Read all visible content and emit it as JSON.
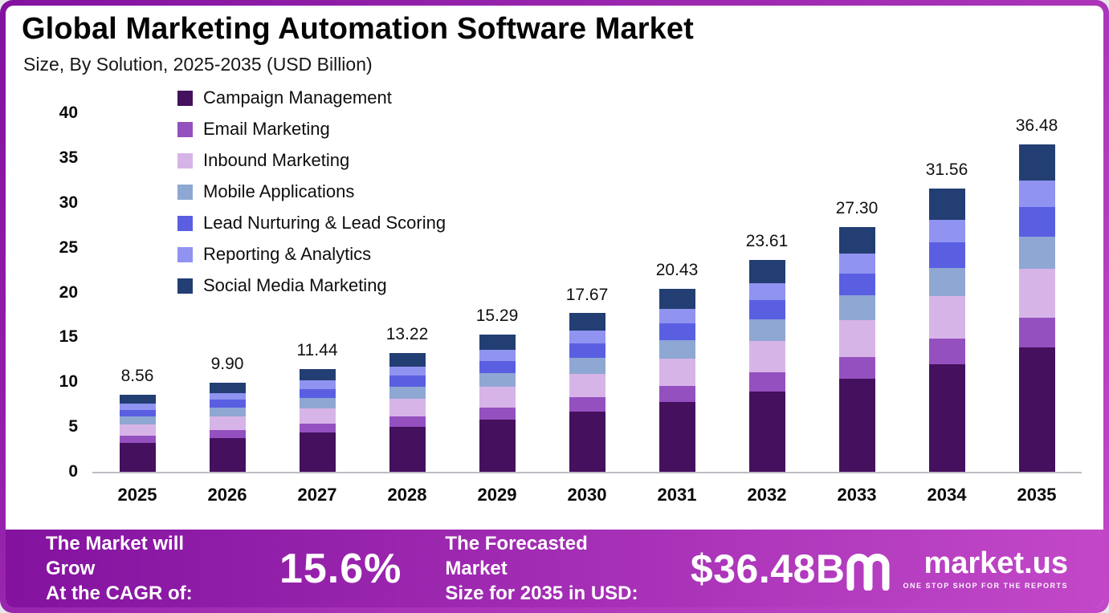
{
  "header": {
    "title": "Global Marketing Automation Software Market",
    "subtitle": "Size, By Solution, 2025-2035 (USD Billion)"
  },
  "theme": {
    "gradient": [
      "#83129f",
      "#c248c8"
    ],
    "background": "#ffffff",
    "text": "#0a0a0a",
    "axis_line": "#bcbcc4"
  },
  "chart_data": {
    "type": "bar",
    "stacked": true,
    "title": "Global Marketing Automation Software Market",
    "subtitle": "Size, By Solution, 2025-2035 (USD Billion)",
    "unit": "USD Billion",
    "xlabel": "",
    "ylabel": "",
    "ylim": [
      0,
      40
    ],
    "yticks": [
      0,
      5,
      10,
      15,
      20,
      25,
      30,
      35,
      40
    ],
    "grid": false,
    "legend_position": "upper-left-inside",
    "categories": [
      "2025",
      "2026",
      "2027",
      "2028",
      "2029",
      "2030",
      "2031",
      "2032",
      "2033",
      "2034",
      "2035"
    ],
    "totals": [
      8.56,
      9.9,
      11.44,
      13.22,
      15.29,
      17.67,
      20.43,
      23.61,
      27.3,
      31.56,
      36.48
    ],
    "total_labels": [
      "8.56",
      "9.90",
      "11.44",
      "13.22",
      "15.29",
      "17.67",
      "20.43",
      "23.61",
      "27.30",
      "31.56",
      "36.48"
    ],
    "note": "Only stacked totals are labeled in the figure; per-segment values are estimated from bar proportions.",
    "series": [
      {
        "name": "Campaign Management",
        "color": "#45105e",
        "values": [
          3.25,
          3.76,
          4.35,
          5.02,
          5.81,
          6.71,
          7.76,
          8.97,
          10.37,
          11.99,
          13.86
        ]
      },
      {
        "name": "Email Marketing",
        "color": "#9450bf",
        "values": [
          0.77,
          0.89,
          1.03,
          1.19,
          1.38,
          1.59,
          1.84,
          2.12,
          2.46,
          2.84,
          3.28
        ]
      },
      {
        "name": "Inbound Marketing",
        "color": "#d7b4e8",
        "values": [
          1.28,
          1.49,
          1.72,
          1.98,
          2.29,
          2.65,
          3.06,
          3.54,
          4.1,
          4.73,
          5.47
        ]
      },
      {
        "name": "Mobile Applications",
        "color": "#8fa7d3",
        "values": [
          0.86,
          0.99,
          1.14,
          1.32,
          1.53,
          1.77,
          2.04,
          2.36,
          2.73,
          3.16,
          3.65
        ]
      },
      {
        "name": "Lead Nurturing & Lead Scoring",
        "color": "#5a5fe2",
        "values": [
          0.77,
          0.89,
          1.03,
          1.19,
          1.38,
          1.59,
          1.84,
          2.12,
          2.46,
          2.84,
          3.28
        ]
      },
      {
        "name": "Reporting & Analytics",
        "color": "#9093f0",
        "values": [
          0.68,
          0.79,
          0.92,
          1.06,
          1.22,
          1.41,
          1.63,
          1.89,
          2.18,
          2.52,
          2.92
        ]
      },
      {
        "name": "Social Media Marketing",
        "color": "#223e73",
        "values": [
          0.95,
          1.09,
          1.25,
          1.46,
          1.68,
          1.95,
          2.26,
          2.61,
          3.0,
          3.48,
          4.02
        ]
      }
    ]
  },
  "footer": {
    "cagr_label_line1": "The Market will Grow",
    "cagr_label_line2": "At the CAGR of:",
    "cagr_value": "15.6%",
    "forecast_label_line1": "The Forecasted Market",
    "forecast_label_line2": "Size for 2035 in USD:",
    "forecast_value": "$36.48B",
    "brand": {
      "name": "market.us",
      "tagline": "ONE STOP SHOP FOR THE REPORTS"
    }
  }
}
